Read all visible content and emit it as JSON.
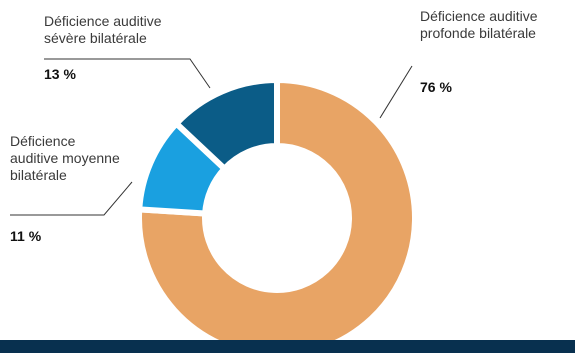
{
  "chart_data": {
    "type": "pie",
    "donut": true,
    "categories": [
      "Déficience auditive profonde bilatérale",
      "Déficience auditive moyenne bilatérale",
      "Déficience auditive sévère bilatérale"
    ],
    "values": [
      76,
      11,
      13
    ],
    "value_labels": [
      "76 %",
      "11 %",
      "13 %"
    ],
    "colors": [
      "#E8A465",
      "#1AA0E0",
      "#0B5C87"
    ]
  },
  "labels": {
    "profonde": "Déficience auditive profonde bilatérale",
    "severe": "Déficience auditive sévère bilatérale",
    "moyenne": "Déficience auditive moyenne bilatérale",
    "profonde_pct": "76 %",
    "severe_pct": "13 %",
    "moyenne_pct": "11 %"
  },
  "footer_color": "#08304F"
}
